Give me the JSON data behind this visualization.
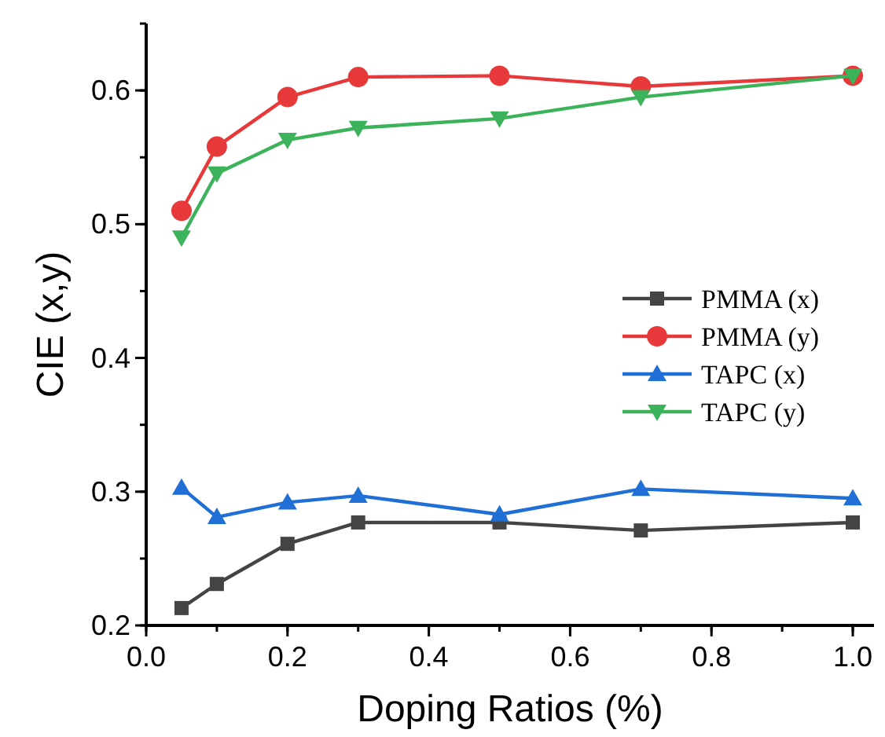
{
  "chart_data": {
    "type": "line",
    "xlabel": "Doping Ratios (%)",
    "ylabel": "CIE (x,y)",
    "x": [
      0.05,
      0.1,
      0.2,
      0.3,
      0.5,
      0.7,
      1.0
    ],
    "xlim": [
      0,
      1.03
    ],
    "xticks": [
      {
        "value": 0,
        "label": "0.0"
      },
      0.2,
      0.4,
      0.6,
      0.8,
      {
        "value": 1,
        "label": "1.0"
      }
    ],
    "ylim": [
      0.2,
      0.65
    ],
    "yticks": [
      0.2,
      0.3,
      0.4,
      0.5,
      0.6
    ],
    "legend": "right",
    "grid": false,
    "line_style": "solid",
    "series": [
      {
        "name": "PMMA (x)",
        "color": "#444444",
        "marker": "square",
        "values": [
          0.213,
          0.231,
          0.261,
          0.277,
          0.277,
          0.271,
          0.277
        ]
      },
      {
        "name": "PMMA (y)",
        "color": "#e8393a",
        "marker": "circle",
        "values": [
          0.51,
          0.558,
          0.595,
          0.61,
          0.611,
          0.603,
          0.611
        ]
      },
      {
        "name": "TAPC (x)",
        "color": "#1f6fd6",
        "marker": "triangle",
        "values": [
          0.303,
          0.281,
          0.292,
          0.297,
          0.283,
          0.302,
          0.295
        ]
      },
      {
        "name": "TAPC (y)",
        "color": "#3cb35a",
        "marker": "triangle-down",
        "values": [
          0.49,
          0.538,
          0.563,
          0.572,
          0.579,
          0.595,
          0.611
        ]
      }
    ]
  }
}
